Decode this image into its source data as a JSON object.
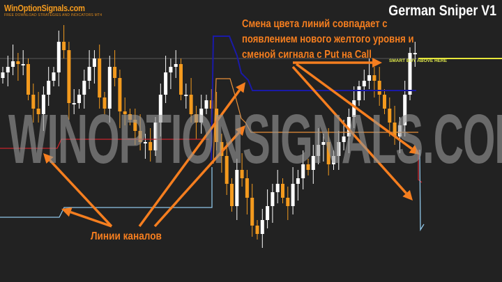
{
  "logo": {
    "name": "WinOptionSignals.com",
    "tagline": "FREE DOWNLOAD STRATEGIES AND INDICATORS MT4"
  },
  "title": "German Sniper V1",
  "annotation": {
    "lines": [
      "Смена цвета линий  совпадает с",
      "появлением нового желтого уровня и",
      "сменой сигнала с Put на Call"
    ]
  },
  "signal_label": "SMART BUY ABOVE HERE",
  "channels_label": "Линии каналов",
  "watermark": "WINOPTIONSIGNALS.COM",
  "colors": {
    "background": "#222222",
    "bull_candle": "#ffffff",
    "bear_candle": "#f39a1e",
    "upper_channel": "#1a1aa8",
    "mid_channel": "#e8903a",
    "red_channel": "#c8242c",
    "lower_channel": "#8fc6e8",
    "buy_level": "#e8e83a",
    "arrows": "#f57e1f"
  },
  "chart_data": {
    "type": "candlestick",
    "title": "",
    "xlabel": "",
    "ylabel": "",
    "grid": false,
    "closes": [
      74,
      76,
      78,
      77,
      77,
      66,
      61,
      59,
      66,
      71,
      74,
      85,
      82,
      63,
      63,
      66,
      71,
      76,
      79,
      65,
      61,
      76,
      72,
      60,
      59,
      57,
      53,
      49,
      49,
      46,
      56,
      66,
      74,
      76,
      77,
      66,
      66,
      59,
      56,
      61,
      64,
      61,
      49,
      44,
      34,
      26,
      39,
      36,
      29,
      19,
      16,
      21,
      26,
      31,
      34,
      29,
      26,
      34,
      36,
      41,
      39,
      44,
      48,
      49,
      41,
      44,
      49,
      51,
      58,
      64,
      69,
      71,
      73,
      71,
      66,
      61,
      56,
      51,
      55,
      66,
      81,
      81
    ]
  }
}
